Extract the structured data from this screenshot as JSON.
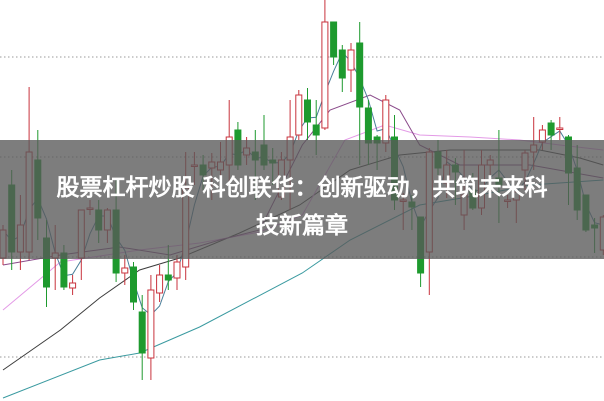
{
  "overlay": {
    "title_lines": [
      "股票杠杆炒股 科创联华：创新驱动，共筑未来科",
      "技新篇章"
    ]
  },
  "chart_data": {
    "type": "candlestick",
    "title": "",
    "xlabel": "",
    "ylabel": "",
    "ylim": [
      0,
      40.1
    ],
    "grid": "horizontal dotted",
    "colors": {
      "up": "#c8323c",
      "down": "#1e9a2e",
      "ma_long": "#3a9aa0",
      "ma_mid": "#3c3c3c",
      "ma_pink": "#e39ae6",
      "ma_purple": "#8a4a8a",
      "ma_short": "#4a7f9a"
    },
    "candles": [
      [
        14.3,
        17.6,
        13.6,
        17.1
      ],
      [
        21.6,
        23.1,
        13.1,
        14.9
      ],
      [
        14.9,
        20.6,
        13.1,
        17.6
      ],
      [
        14.9,
        31.4,
        14.1,
        24.9
      ],
      [
        24.1,
        27.1,
        16.1,
        18.3
      ],
      [
        16.3,
        18.1,
        9.4,
        11.4
      ],
      [
        14.3,
        17.6,
        11.1,
        14.8
      ],
      [
        14.8,
        15.6,
        11.1,
        11.4
      ],
      [
        11.3,
        12.6,
        10.6,
        11.8
      ],
      [
        14.3,
        19.1,
        12.1,
        19.1
      ],
      [
        19.3,
        20.1,
        18.6,
        19.3
      ],
      [
        19.1,
        20.1,
        15.8,
        17.1
      ],
      [
        17.1,
        19.3,
        15.8,
        19.1
      ],
      [
        19.1,
        22.1,
        11.9,
        12.8
      ],
      [
        12.8,
        14.6,
        11.6,
        13.3
      ],
      [
        13.4,
        13.9,
        9.1,
        9.9
      ],
      [
        8.9,
        10.6,
        2.1,
        4.8
      ],
      [
        4.3,
        12.6,
        2.1,
        11.1
      ],
      [
        10.8,
        13.6,
        9.9,
        12.6
      ],
      [
        12.6,
        15.6,
        11.1,
        12.1
      ],
      [
        12.3,
        14.6,
        11.1,
        13.9
      ],
      [
        13.4,
        24.9,
        12.1,
        21.3
      ],
      [
        23.6,
        24.9,
        21.6,
        23.6
      ],
      [
        23.6,
        24.6,
        21.1,
        22.6
      ],
      [
        23.3,
        24.8,
        20.1,
        23.9
      ],
      [
        23.1,
        25.9,
        20.6,
        23.9
      ],
      [
        23.6,
        30.1,
        21.6,
        26.4
      ],
      [
        27.1,
        27.9,
        23.1,
        23.6
      ],
      [
        24.6,
        26.4,
        23.6,
        25.3
      ],
      [
        24.9,
        27.1,
        20.1,
        24.1
      ],
      [
        25.6,
        28.6,
        23.1,
        23.6
      ],
      [
        24.1,
        25.3,
        21.6,
        23.8
      ],
      [
        20.4,
        24.9,
        20.1,
        24.1
      ],
      [
        24.1,
        30.1,
        19.1,
        26.4
      ],
      [
        26.6,
        31.1,
        26.1,
        30.6
      ],
      [
        30.1,
        31.3,
        26.1,
        27.9
      ],
      [
        27.6,
        30.1,
        24.6,
        26.6
      ],
      [
        27.3,
        40.1,
        27.1,
        37.9
      ],
      [
        37.9,
        37.9,
        33.6,
        34.4
      ],
      [
        35.1,
        35.6,
        30.9,
        32.3
      ],
      [
        33.1,
        35.8,
        30.9,
        35.1
      ],
      [
        35.8,
        37.9,
        23.6,
        29.4
      ],
      [
        29.3,
        30.1,
        23.6,
        25.8
      ],
      [
        26.4,
        26.6,
        23.1,
        25.8
      ],
      [
        25.8,
        30.6,
        24.9,
        30.1
      ],
      [
        26.4,
        28.6,
        19.1,
        20.1
      ],
      [
        20.1,
        20.8,
        17.1,
        20.1
      ],
      [
        19.9,
        20.6,
        17.1,
        19.4
      ],
      [
        18.4,
        18.4,
        11.4,
        12.8
      ],
      [
        14.9,
        25.3,
        10.6,
        24.9
      ],
      [
        24.9,
        26.1,
        22.6,
        23.3
      ],
      [
        21.8,
        25.1,
        20.3,
        23.6
      ],
      [
        23.6,
        24.3,
        19.6,
        22.9
      ],
      [
        18.6,
        25.1,
        17.1,
        20.6
      ],
      [
        21.1,
        22.8,
        19.1,
        19.3
      ],
      [
        19.3,
        25.1,
        18.6,
        23.6
      ],
      [
        23.6,
        24.6,
        21.6,
        24.1
      ],
      [
        22.3,
        27.1,
        17.8,
        21.6
      ],
      [
        20.1,
        20.6,
        19.3,
        20.1
      ],
      [
        20.1,
        21.1,
        17.8,
        20.9
      ],
      [
        23.1,
        25.1,
        21.1,
        24.8
      ],
      [
        24.9,
        28.4,
        23.1,
        25.6
      ],
      [
        25.9,
        27.6,
        25.1,
        27.1
      ],
      [
        27.8,
        28.1,
        25.1,
        26.6
      ],
      [
        27.3,
        28.4,
        26.1,
        27.3
      ],
      [
        26.4,
        26.6,
        19.6,
        22.8
      ],
      [
        23.3,
        25.6,
        18.1,
        19.1
      ],
      [
        20.6,
        20.6,
        16.9,
        17.1
      ],
      [
        17.6,
        18.3,
        14.8,
        17.3
      ],
      [
        15.1,
        18.6,
        14.6,
        18.4
      ]
    ],
    "moving_averages": [
      {
        "key": "ma_long",
        "points": [
          [
            0,
            0.3
          ],
          [
            11.1,
            4.1
          ],
          [
            15.7,
            4.8
          ],
          [
            22.6,
            7.4
          ],
          [
            34.4,
            12.8
          ],
          [
            39.9,
            16.1
          ],
          [
            47.9,
            19.6
          ],
          [
            54.8,
            20.6
          ],
          [
            60.6,
            21.6
          ],
          [
            69,
            22.1
          ]
        ]
      },
      {
        "key": "ma_mid",
        "points": [
          [
            0,
            3.1
          ],
          [
            6.6,
            7.1
          ],
          [
            11.1,
            10.3
          ],
          [
            15.7,
            13.1
          ],
          [
            20.3,
            14.3
          ],
          [
            27.2,
            16.8
          ],
          [
            34.1,
            19.6
          ],
          [
            39.9,
            23.1
          ],
          [
            45.6,
            24.6
          ],
          [
            51.4,
            25.1
          ],
          [
            61.7,
            25.1
          ],
          [
            66.3,
            24.3
          ],
          [
            69,
            23.6
          ]
        ]
      },
      {
        "key": "ma_pink",
        "points": [
          [
            0,
            9.1
          ],
          [
            6.6,
            13.9
          ],
          [
            15.7,
            15.1
          ],
          [
            22.6,
            15.8
          ],
          [
            29.5,
            16.9
          ],
          [
            34.4,
            18.6
          ],
          [
            39.3,
            26.1
          ],
          [
            43.9,
            27.6
          ],
          [
            47.9,
            26.6
          ],
          [
            53.7,
            26.4
          ],
          [
            59.4,
            26.1
          ],
          [
            64,
            25.6
          ],
          [
            69,
            25.1
          ]
        ]
      },
      {
        "key": "ma_purple",
        "points": [
          [
            0,
            13.6
          ],
          [
            6.6,
            14.6
          ],
          [
            13.4,
            15.4
          ],
          [
            19.2,
            14.6
          ],
          [
            24.9,
            16.1
          ],
          [
            29.5,
            17.1
          ],
          [
            34.4,
            25.6
          ],
          [
            37.6,
            29.1
          ],
          [
            42.2,
            30.6
          ],
          [
            45.6,
            29.1
          ],
          [
            47.9,
            25.6
          ],
          [
            52.5,
            23.6
          ],
          [
            60.6,
            23.6
          ],
          [
            69,
            22.3
          ]
        ]
      }
    ]
  }
}
